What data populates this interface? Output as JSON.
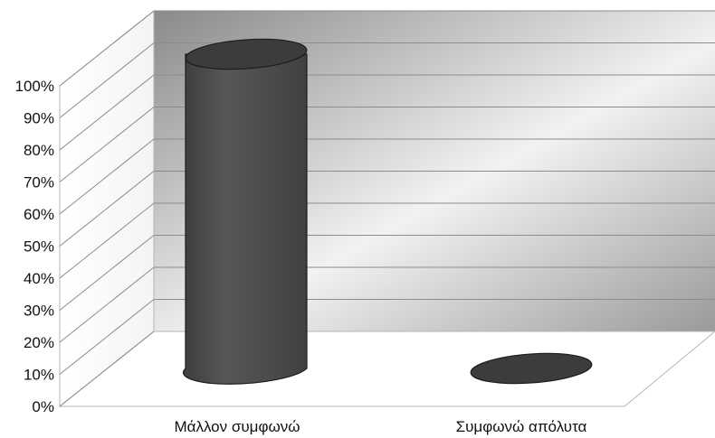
{
  "chart_data": {
    "type": "bar",
    "style": "3d-cylinder",
    "categories": [
      "Μάλλον συμφωνώ",
      "Συμφωνώ απόλυτα"
    ],
    "values": [
      100,
      0
    ],
    "ylim": [
      0,
      100
    ],
    "yticks": [
      "0%",
      "10%",
      "20%",
      "30%",
      "40%",
      "50%",
      "60%",
      "70%",
      "80%",
      "90%",
      "100%"
    ],
    "title": "",
    "xlabel": "",
    "ylabel": "",
    "grid": true,
    "legend": "none",
    "colors": {
      "bar": "#4a4a4a",
      "bar_top": "#3c3c3c",
      "back_wall_dark": "#8a8a8a",
      "back_wall_light": "#f2f2f2",
      "gridline": "#8c8c8c"
    }
  }
}
